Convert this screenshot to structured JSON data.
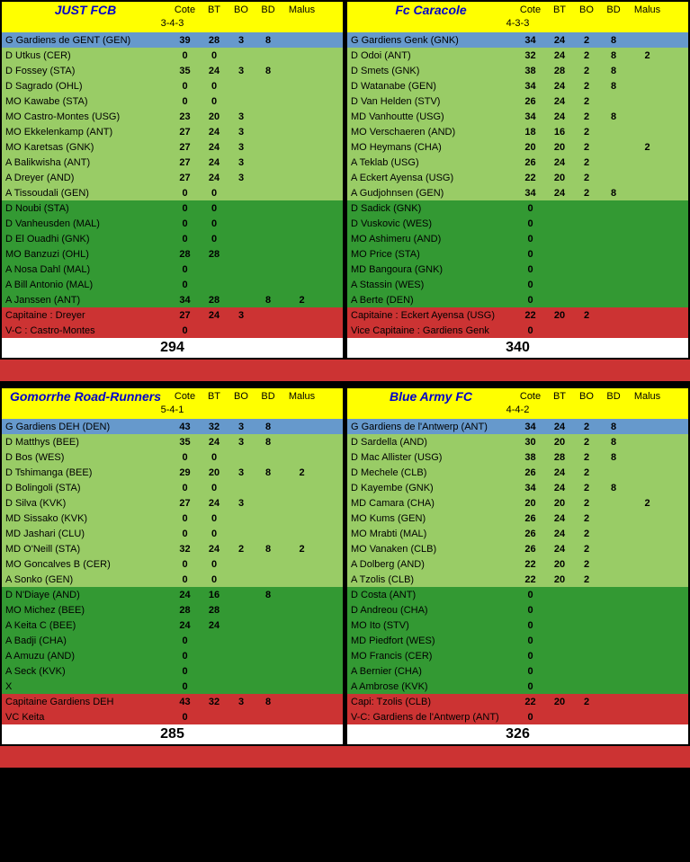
{
  "cols": [
    "Cote",
    "BT",
    "BO",
    "BD",
    "Malus"
  ],
  "teams": [
    {
      "name": "JUST FCB",
      "form": "3-4-3",
      "total": "294",
      "gk": [
        [
          "G Gardiens de GENT (GEN)",
          "39",
          "28",
          "3",
          "8",
          ""
        ]
      ],
      "main": [
        [
          "D Utkus (CER)",
          "0",
          "0",
          "",
          "",
          ""
        ],
        [
          "D Fossey (STA)",
          "35",
          "24",
          "3",
          "8",
          ""
        ],
        [
          "D Sagrado (OHL)",
          "0",
          "0",
          "",
          "",
          ""
        ],
        [
          "MO Kawabe (STA)",
          "0",
          "0",
          "",
          "",
          ""
        ],
        [
          "MO Castro-Montes (USG)",
          "23",
          "20",
          "3",
          "",
          ""
        ],
        [
          "MO Ekkelenkamp (ANT)",
          "27",
          "24",
          "3",
          "",
          ""
        ],
        [
          "MO Karetsas (GNK)",
          "27",
          "24",
          "3",
          "",
          ""
        ],
        [
          "A Balikwisha (ANT)",
          "27",
          "24",
          "3",
          "",
          ""
        ],
        [
          "A Dreyer (AND)",
          "27",
          "24",
          "3",
          "",
          ""
        ],
        [
          "A Tissoudali (GEN)",
          "0",
          "0",
          "",
          "",
          ""
        ]
      ],
      "sub": [
        [
          "D Noubi (STA)",
          "0",
          "0",
          "",
          "",
          ""
        ],
        [
          "D Vanheusden (MAL)",
          "0",
          "0",
          "",
          "",
          ""
        ],
        [
          "D El Ouadhi (GNK)",
          "0",
          "0",
          "",
          "",
          ""
        ],
        [
          "MO Banzuzi (OHL)",
          "28",
          "28",
          "",
          "",
          ""
        ],
        [
          "A Nosa Dahl (MAL)",
          "0",
          "",
          "",
          "",
          ""
        ],
        [
          "A Bill Antonio (MAL)",
          "0",
          "",
          "",
          "",
          ""
        ],
        [
          "A Janssen (ANT)",
          "34",
          "28",
          "",
          "8",
          "2"
        ]
      ],
      "cap": [
        [
          "Capitaine : Dreyer",
          "27",
          "24",
          "3",
          "",
          ""
        ],
        [
          "V-C : Castro-Montes",
          "0",
          "",
          "",
          "",
          ""
        ]
      ]
    },
    {
      "name": "Fc Caracole",
      "form": "4-3-3",
      "total": "340",
      "gk": [
        [
          "G Gardiens Genk (GNK)",
          "34",
          "24",
          "2",
          "8",
          ""
        ]
      ],
      "main": [
        [
          "D Odoi (ANT)",
          "32",
          "24",
          "2",
          "8",
          "2"
        ],
        [
          "D Smets (GNK)",
          "38",
          "28",
          "2",
          "8",
          ""
        ],
        [
          "D Watanabe (GEN)",
          "34",
          "24",
          "2",
          "8",
          ""
        ],
        [
          "D Van Helden (STV)",
          "26",
          "24",
          "2",
          "",
          ""
        ],
        [
          "MD Vanhoutte (USG)",
          "34",
          "24",
          "2",
          "8",
          ""
        ],
        [
          "MO Verschaeren (AND)",
          "18",
          "16",
          "2",
          "",
          ""
        ],
        [
          "MO Heymans (CHA)",
          "20",
          "20",
          "2",
          "",
          "2"
        ],
        [
          "A Teklab (USG)",
          "26",
          "24",
          "2",
          "",
          ""
        ],
        [
          "A Eckert Ayensa (USG)",
          "22",
          "20",
          "2",
          "",
          ""
        ],
        [
          "A Gudjohnsen (GEN)",
          "34",
          "24",
          "2",
          "8",
          ""
        ]
      ],
      "sub": [
        [
          "D Sadick (GNK)",
          "0",
          "",
          "",
          "",
          ""
        ],
        [
          "D Vuskovic (WES)",
          "0",
          "",
          "",
          "",
          ""
        ],
        [
          "MO Ashimeru (AND)",
          "0",
          "",
          "",
          "",
          ""
        ],
        [
          "MO Price (STA)",
          "0",
          "",
          "",
          "",
          ""
        ],
        [
          "MD Bangoura (GNK)",
          "0",
          "",
          "",
          "",
          ""
        ],
        [
          "A Stassin (WES)",
          "0",
          "",
          "",
          "",
          ""
        ],
        [
          "A Berte (DEN)",
          "0",
          "",
          "",
          "",
          ""
        ]
      ],
      "cap": [
        [
          "Capitaine : Eckert Ayensa (USG)",
          "22",
          "20",
          "2",
          "",
          ""
        ],
        [
          "Vice Capitaine : Gardiens Genk",
          "0",
          "",
          "",
          "",
          ""
        ]
      ]
    },
    {
      "name": "Gomorrhe Road-Runners",
      "form": "5-4-1",
      "total": "285",
      "gk": [
        [
          "G Gardiens DEH (DEN)",
          "43",
          "32",
          "3",
          "8",
          ""
        ]
      ],
      "main": [
        [
          "D Matthys (BEE)",
          "35",
          "24",
          "3",
          "8",
          ""
        ],
        [
          "D Bos (WES)",
          "0",
          "0",
          "",
          "",
          ""
        ],
        [
          "D Tshimanga (BEE)",
          "29",
          "20",
          "3",
          "8",
          "2"
        ],
        [
          "D Bolingoli (STA)",
          "0",
          "0",
          "",
          "",
          ""
        ],
        [
          "D Silva (KVK)",
          "27",
          "24",
          "3",
          "",
          ""
        ],
        [
          "MD Sissako (KVK)",
          "0",
          "0",
          "",
          "",
          ""
        ],
        [
          "MD Jashari (CLU)",
          "0",
          "0",
          "",
          "",
          ""
        ],
        [
          "MD O'Neill (STA)",
          "32",
          "24",
          "2",
          "8",
          "2"
        ],
        [
          "MO Goncalves B (CER)",
          "0",
          "0",
          "",
          "",
          ""
        ],
        [
          "A Sonko (GEN)",
          "0",
          "0",
          "",
          "",
          ""
        ]
      ],
      "sub": [
        [
          "D N'Diaye (AND)",
          "24",
          "16",
          "",
          "8",
          ""
        ],
        [
          "MO Michez (BEE)",
          "28",
          "28",
          "",
          "",
          ""
        ],
        [
          "A Keita C (BEE)",
          "24",
          "24",
          "",
          "",
          ""
        ],
        [
          "A Badji (CHA)",
          "0",
          "",
          "",
          "",
          ""
        ],
        [
          "A Amuzu (AND)",
          "0",
          "",
          "",
          "",
          ""
        ],
        [
          "A Seck (KVK)",
          "0",
          "",
          "",
          "",
          ""
        ],
        [
          "X",
          "0",
          "",
          "",
          "",
          ""
        ]
      ],
      "cap": [
        [
          "Capitaine Gardiens DEH",
          "43",
          "32",
          "3",
          "8",
          ""
        ],
        [
          "VC Keita",
          "0",
          "",
          "",
          "",
          ""
        ]
      ]
    },
    {
      "name": "Blue Army FC",
      "form": "4-4-2",
      "total": "326",
      "gk": [
        [
          "G Gardiens de l'Antwerp (ANT)",
          "34",
          "24",
          "2",
          "8",
          ""
        ]
      ],
      "main": [
        [
          "D Sardella (AND)",
          "30",
          "20",
          "2",
          "8",
          ""
        ],
        [
          "D Mac Allister (USG)",
          "38",
          "28",
          "2",
          "8",
          ""
        ],
        [
          "D Mechele (CLB)",
          "26",
          "24",
          "2",
          "",
          ""
        ],
        [
          "D Kayembe (GNK)",
          "34",
          "24",
          "2",
          "8",
          ""
        ],
        [
          "MD Camara (CHA)",
          "20",
          "20",
          "2",
          "",
          "2"
        ],
        [
          "MO Kums (GEN)",
          "26",
          "24",
          "2",
          "",
          ""
        ],
        [
          "MO Mrabti (MAL)",
          "26",
          "24",
          "2",
          "",
          ""
        ],
        [
          "MO Vanaken (CLB)",
          "26",
          "24",
          "2",
          "",
          ""
        ],
        [
          "A Dolberg (AND)",
          "22",
          "20",
          "2",
          "",
          ""
        ],
        [
          "A Tzolis (CLB)",
          "22",
          "20",
          "2",
          "",
          ""
        ]
      ],
      "sub": [
        [
          "D Costa (ANT)",
          "0",
          "",
          "",
          "",
          ""
        ],
        [
          "D Andreou (CHA)",
          "0",
          "",
          "",
          "",
          ""
        ],
        [
          "MO Ito (STV)",
          "0",
          "",
          "",
          "",
          ""
        ],
        [
          "MD Piedfort (WES)",
          "0",
          "",
          "",
          "",
          ""
        ],
        [
          "MO Francis (CER)",
          "0",
          "",
          "",
          "",
          ""
        ],
        [
          "A Bernier (CHA)",
          "0",
          "",
          "",
          "",
          ""
        ],
        [
          "A Ambrose (KVK)",
          "0",
          "",
          "",
          "",
          ""
        ]
      ],
      "cap": [
        [
          "Capi: Tzolis (CLB)",
          "22",
          "20",
          "2",
          "",
          ""
        ],
        [
          "V-C: Gardiens de l'Antwerp (ANT)",
          "0",
          "",
          "",
          "",
          ""
        ]
      ]
    }
  ]
}
